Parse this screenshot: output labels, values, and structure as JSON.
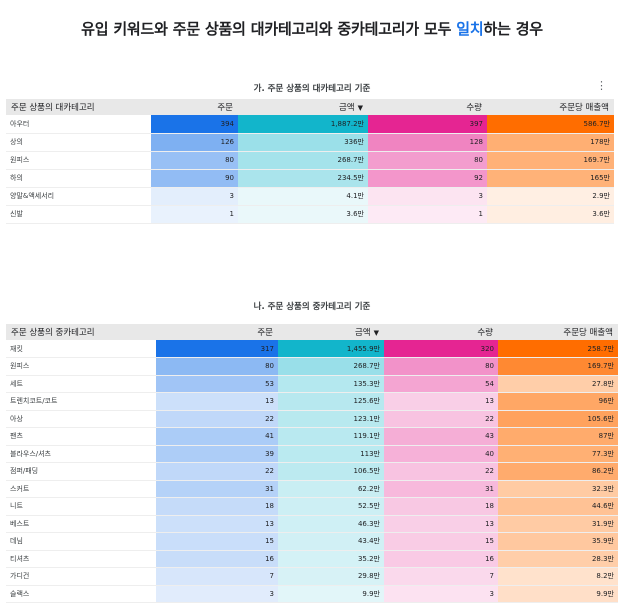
{
  "page": {
    "title_before": "유입 키워드와 주문 상품의 대카테고리와 중카테고리가 모두 ",
    "title_highlight": "일치",
    "title_after": "하는 경우"
  },
  "colors": {
    "orders": "#1a73e8",
    "amount": "#12b5cb",
    "quantity": "#e52592",
    "per_order": "#ff6d00",
    "accent": "#1a73e8"
  },
  "table1": {
    "subtitle": "가. 주문 상품의 대카테고리 기준",
    "menu_icon": "⋮",
    "headers": {
      "category": "주문 상품의 대카테고리",
      "orders": "주문",
      "amount": "금액",
      "quantity": "수량",
      "per_order": "주문당 매출액"
    },
    "sort_icon": "▼",
    "rows": [
      {
        "category": "아우터",
        "orders": "394",
        "amount": "1,887.2만",
        "quantity": "397",
        "per_order": "586.7만",
        "o": 394,
        "a": 1887.2,
        "q": 397,
        "p": 586.7
      },
      {
        "category": "상의",
        "orders": "126",
        "amount": "336만",
        "quantity": "128",
        "per_order": "178만",
        "o": 126,
        "a": 336,
        "q": 128,
        "p": 178
      },
      {
        "category": "원피스",
        "orders": "80",
        "amount": "268.7만",
        "quantity": "80",
        "per_order": "169.7만",
        "o": 80,
        "a": 268.7,
        "q": 80,
        "p": 169.7
      },
      {
        "category": "하의",
        "orders": "90",
        "amount": "234.5만",
        "quantity": "92",
        "per_order": "165만",
        "o": 90,
        "a": 234.5,
        "q": 92,
        "p": 165
      },
      {
        "category": "양말&액세서리",
        "orders": "3",
        "amount": "4.1만",
        "quantity": "3",
        "per_order": "2.9만",
        "o": 3,
        "a": 4.1,
        "q": 3,
        "p": 2.9
      },
      {
        "category": "신발",
        "orders": "1",
        "amount": "3.6만",
        "quantity": "1",
        "per_order": "3.6만",
        "o": 1,
        "a": 3.6,
        "q": 1,
        "p": 3.6
      }
    ]
  },
  "table2": {
    "subtitle": "나. 주문 상품의 중카테고리 기준",
    "headers": {
      "category": "주문 상품의 중카테고리",
      "orders": "주문",
      "amount": "금액",
      "quantity": "수량",
      "per_order": "주문당 매출액"
    },
    "sort_icon": "▼",
    "rows": [
      {
        "category": "재킷",
        "orders": "317",
        "amount": "1,455.9만",
        "quantity": "320",
        "per_order": "258.7만",
        "o": 317,
        "a": 1455.9,
        "q": 320,
        "p": 258.7
      },
      {
        "category": "원피스",
        "orders": "80",
        "amount": "268.7만",
        "quantity": "80",
        "per_order": "169.7만",
        "o": 80,
        "a": 268.7,
        "q": 80,
        "p": 169.7
      },
      {
        "category": "세트",
        "orders": "53",
        "amount": "135.3만",
        "quantity": "54",
        "per_order": "27.8만",
        "o": 53,
        "a": 135.3,
        "q": 54,
        "p": 27.8
      },
      {
        "category": "트렌치코트/코트",
        "orders": "13",
        "amount": "125.6만",
        "quantity": "13",
        "per_order": "96만",
        "o": 13,
        "a": 125.6,
        "q": 13,
        "p": 96
      },
      {
        "category": "아상",
        "orders": "22",
        "amount": "123.1만",
        "quantity": "22",
        "per_order": "105.6만",
        "o": 22,
        "a": 123.1,
        "q": 22,
        "p": 105.6
      },
      {
        "category": "팬츠",
        "orders": "41",
        "amount": "119.1만",
        "quantity": "43",
        "per_order": "87만",
        "o": 41,
        "a": 119.1,
        "q": 43,
        "p": 87
      },
      {
        "category": "블라우스/셔츠",
        "orders": "39",
        "amount": "113만",
        "quantity": "40",
        "per_order": "77.3만",
        "o": 39,
        "a": 113,
        "q": 40,
        "p": 77.3
      },
      {
        "category": "점퍼/패딩",
        "orders": "22",
        "amount": "106.5만",
        "quantity": "22",
        "per_order": "86.2만",
        "o": 22,
        "a": 106.5,
        "q": 22,
        "p": 86.2
      },
      {
        "category": "스커트",
        "orders": "31",
        "amount": "62.2만",
        "quantity": "31",
        "per_order": "32.3만",
        "o": 31,
        "a": 62.2,
        "q": 31,
        "p": 32.3
      },
      {
        "category": "니트",
        "orders": "18",
        "amount": "52.5만",
        "quantity": "18",
        "per_order": "44.6만",
        "o": 18,
        "a": 52.5,
        "q": 18,
        "p": 44.6
      },
      {
        "category": "베스트",
        "orders": "13",
        "amount": "46.3만",
        "quantity": "13",
        "per_order": "31.9만",
        "o": 13,
        "a": 46.3,
        "q": 13,
        "p": 31.9
      },
      {
        "category": "데님",
        "orders": "15",
        "amount": "43.4만",
        "quantity": "15",
        "per_order": "35.9만",
        "o": 15,
        "a": 43.4,
        "q": 15,
        "p": 35.9
      },
      {
        "category": "티셔츠",
        "orders": "16",
        "amount": "35.2만",
        "quantity": "16",
        "per_order": "28.3만",
        "o": 16,
        "a": 35.2,
        "q": 16,
        "p": 28.3
      },
      {
        "category": "가디건",
        "orders": "7",
        "amount": "29.8만",
        "quantity": "7",
        "per_order": "8.2만",
        "o": 7,
        "a": 29.8,
        "q": 7,
        "p": 8.2
      },
      {
        "category": "슬랙스",
        "orders": "3",
        "amount": "9.9만",
        "quantity": "3",
        "per_order": "9.9만",
        "o": 3,
        "a": 9.9,
        "q": 3,
        "p": 9.9
      }
    ]
  }
}
